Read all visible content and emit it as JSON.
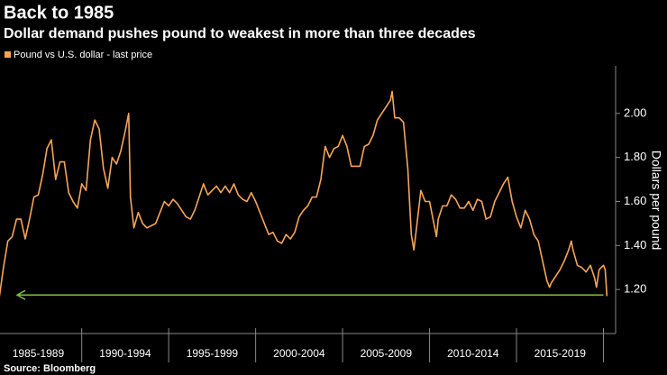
{
  "chart_data": {
    "type": "line",
    "title": "Back to 1985",
    "subtitle": "Dollar demand pushes pound to weakest in more than three decades",
    "y_axis_label": "Dollars per pound",
    "source": "Source: Bloomberg",
    "background": "#000000",
    "x": [
      1985.25,
      1985.5,
      1985.75,
      1986.0,
      1986.25,
      1986.5,
      1986.75,
      1987.0,
      1987.25,
      1987.5,
      1987.75,
      1988.0,
      1988.25,
      1988.5,
      1988.75,
      1989.0,
      1989.25,
      1989.5,
      1989.75,
      1990.0,
      1990.25,
      1990.5,
      1990.75,
      1991.0,
      1991.25,
      1991.5,
      1991.75,
      1992.0,
      1992.25,
      1992.5,
      1992.7,
      1992.8,
      1993.0,
      1993.25,
      1993.5,
      1993.75,
      1994.0,
      1994.25,
      1994.5,
      1994.75,
      1995.0,
      1995.25,
      1995.5,
      1995.75,
      1996.0,
      1996.25,
      1996.5,
      1996.75,
      1997.0,
      1997.25,
      1997.5,
      1997.75,
      1998.0,
      1998.25,
      1998.5,
      1998.75,
      1999.0,
      1999.25,
      1999.5,
      1999.75,
      2000.0,
      2000.25,
      2000.5,
      2000.75,
      2001.0,
      2001.25,
      2001.5,
      2001.75,
      2002.0,
      2002.25,
      2002.5,
      2002.75,
      2003.0,
      2003.25,
      2003.5,
      2003.75,
      2004.0,
      2004.25,
      2004.5,
      2004.75,
      2005.0,
      2005.25,
      2005.5,
      2005.75,
      2006.0,
      2006.25,
      2006.5,
      2006.75,
      2007.0,
      2007.25,
      2007.5,
      2007.75,
      2007.85,
      2008.0,
      2008.25,
      2008.5,
      2008.75,
      2008.95,
      2009.1,
      2009.25,
      2009.5,
      2009.75,
      2010.0,
      2010.25,
      2010.4,
      2010.5,
      2010.75,
      2011.0,
      2011.25,
      2011.5,
      2011.75,
      2012.0,
      2012.25,
      2012.5,
      2012.75,
      2013.0,
      2013.25,
      2013.5,
      2013.75,
      2014.0,
      2014.25,
      2014.5,
      2014.75,
      2015.0,
      2015.25,
      2015.5,
      2015.75,
      2016.0,
      2016.25,
      2016.5,
      2016.75,
      2016.9,
      2017.0,
      2017.25,
      2017.5,
      2017.75,
      2018.0,
      2018.15,
      2018.25,
      2018.5,
      2018.75,
      2019.0,
      2019.25,
      2019.5,
      2019.6,
      2019.75,
      2020.0,
      2020.1,
      2020.2
    ],
    "series": [
      {
        "name": "Pound vs U.S. dollar - last price",
        "color": "#f6a55a",
        "values": [
          1.16,
          1.3,
          1.42,
          1.44,
          1.52,
          1.52,
          1.43,
          1.52,
          1.62,
          1.63,
          1.72,
          1.84,
          1.88,
          1.7,
          1.78,
          1.78,
          1.64,
          1.6,
          1.57,
          1.68,
          1.65,
          1.88,
          1.97,
          1.93,
          1.75,
          1.66,
          1.8,
          1.77,
          1.83,
          1.92,
          2.0,
          1.62,
          1.48,
          1.55,
          1.5,
          1.48,
          1.49,
          1.5,
          1.55,
          1.6,
          1.58,
          1.61,
          1.59,
          1.56,
          1.53,
          1.52,
          1.56,
          1.62,
          1.68,
          1.63,
          1.65,
          1.67,
          1.64,
          1.67,
          1.64,
          1.68,
          1.63,
          1.61,
          1.6,
          1.64,
          1.6,
          1.55,
          1.5,
          1.45,
          1.46,
          1.42,
          1.41,
          1.45,
          1.43,
          1.46,
          1.53,
          1.56,
          1.58,
          1.62,
          1.62,
          1.7,
          1.85,
          1.8,
          1.84,
          1.85,
          1.9,
          1.85,
          1.76,
          1.76,
          1.76,
          1.85,
          1.86,
          1.9,
          1.97,
          2.0,
          2.03,
          2.06,
          2.1,
          1.98,
          1.98,
          1.96,
          1.75,
          1.45,
          1.38,
          1.48,
          1.65,
          1.6,
          1.6,
          1.5,
          1.44,
          1.52,
          1.58,
          1.58,
          1.63,
          1.61,
          1.57,
          1.57,
          1.6,
          1.56,
          1.61,
          1.6,
          1.52,
          1.53,
          1.6,
          1.64,
          1.68,
          1.71,
          1.6,
          1.53,
          1.48,
          1.56,
          1.52,
          1.45,
          1.42,
          1.33,
          1.24,
          1.21,
          1.23,
          1.26,
          1.29,
          1.33,
          1.38,
          1.42,
          1.38,
          1.31,
          1.3,
          1.28,
          1.31,
          1.25,
          1.21,
          1.29,
          1.31,
          1.29,
          1.17
        ]
      }
    ],
    "xlim": [
      1985.3,
      2020.7
    ],
    "xticks": [
      1990,
      1995,
      2000,
      2005,
      2010,
      2015,
      2020
    ],
    "x_period_labels": [
      {
        "value": 1987.5,
        "label": "1985-1989"
      },
      {
        "value": 1992.5,
        "label": "1990-1994"
      },
      {
        "value": 1997.5,
        "label": "1995-1999"
      },
      {
        "value": 2002.5,
        "label": "2000-2004"
      },
      {
        "value": 2007.5,
        "label": "2005-2009"
      },
      {
        "value": 2012.5,
        "label": "2010-2014"
      },
      {
        "value": 2017.5,
        "label": "2015-2019"
      }
    ],
    "ylim": [
      1.0,
      2.2
    ],
    "yticks": [
      {
        "value": 1.2,
        "label": "1.20"
      },
      {
        "value": 1.4,
        "label": "1.40"
      },
      {
        "value": 1.6,
        "label": "1.60"
      },
      {
        "value": 1.8,
        "label": "1.80"
      },
      {
        "value": 2.0,
        "label": "2.00"
      }
    ],
    "annotation_line": {
      "value": 1.175,
      "color": "#7cc242"
    },
    "legend": "top-left"
  }
}
